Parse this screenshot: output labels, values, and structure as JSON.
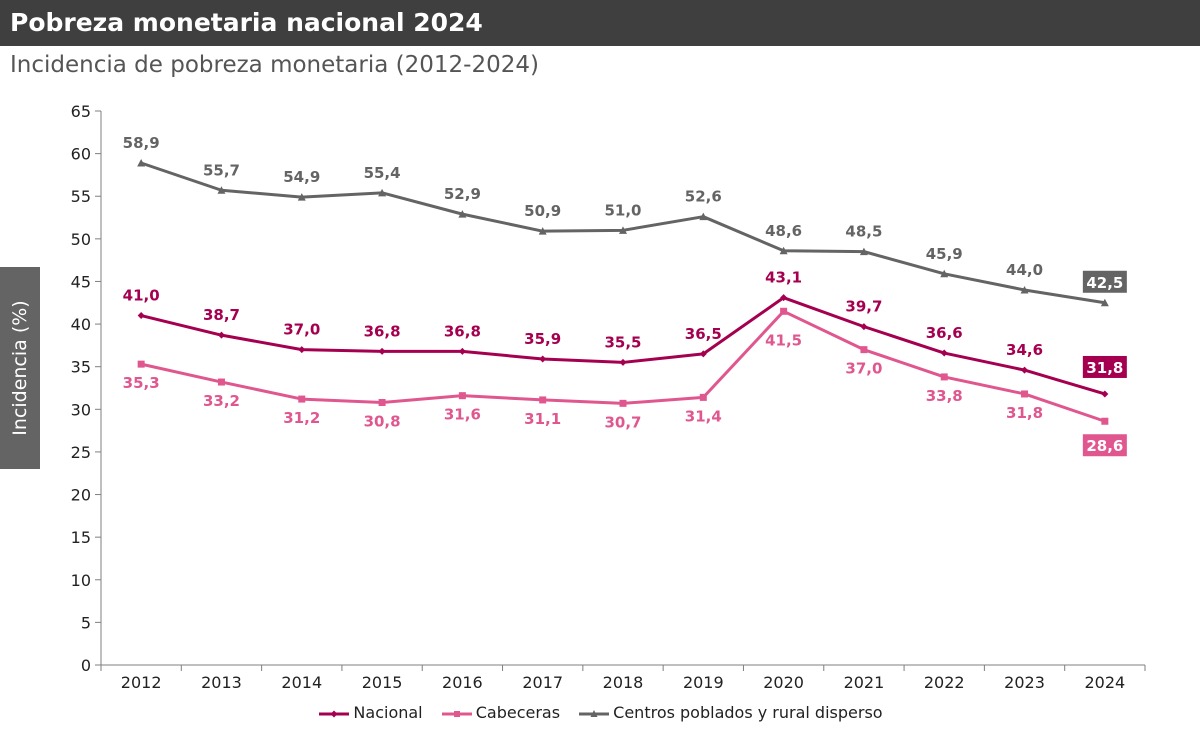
{
  "title": "Pobreza monetaria nacional 2024",
  "subtitle": "Incidencia de pobreza monetaria (2012-2024)",
  "colors": {
    "nacional": "#a50050",
    "cabeceras": "#e0578f",
    "centros": "#646464",
    "title_bg": "#3f3f3f"
  },
  "chart_data": {
    "type": "line",
    "title": "Pobreza monetaria nacional 2024",
    "subtitle": "Incidencia de pobreza monetaria (2012-2024)",
    "xlabel": "",
    "ylabel": "Incidencia (%)",
    "ylim": [
      0,
      65
    ],
    "ytick_step": 5,
    "grid": false,
    "legend_position": "bottom",
    "categories": [
      "2012",
      "2013",
      "2014",
      "2015",
      "2016",
      "2017",
      "2018",
      "2019",
      "2020",
      "2021",
      "2022",
      "2023",
      "2024"
    ],
    "series": [
      {
        "key": "nacional",
        "name": "Nacional",
        "marker": "diamond",
        "values": [
          41.0,
          38.7,
          37.0,
          36.8,
          36.8,
          35.9,
          35.5,
          36.5,
          43.1,
          39.7,
          36.6,
          34.6,
          31.8
        ],
        "labels": [
          "41,0",
          "38,7",
          "37,0",
          "36,8",
          "36,8",
          "35,9",
          "35,5",
          "36,5",
          "43,1",
          "39,7",
          "36,6",
          "34,6",
          "31,8"
        ]
      },
      {
        "key": "cabeceras",
        "name": "Cabeceras",
        "marker": "square",
        "values": [
          35.3,
          33.2,
          31.2,
          30.8,
          31.6,
          31.1,
          30.7,
          31.4,
          41.5,
          37.0,
          33.8,
          31.8,
          28.6
        ],
        "labels": [
          "35,3",
          "33,2",
          "31,2",
          "30,8",
          "31,6",
          "31,1",
          "30,7",
          "31,4",
          "41,5",
          "37,0",
          "33,8",
          "31,8",
          "28,6"
        ]
      },
      {
        "key": "centros",
        "name": "Centros poblados y rural disperso",
        "marker": "triangle",
        "values": [
          58.9,
          55.7,
          54.9,
          55.4,
          52.9,
          50.9,
          51.0,
          52.6,
          48.6,
          48.5,
          45.9,
          44.0,
          42.5
        ],
        "labels": [
          "58,9",
          "55,7",
          "54,9",
          "55,4",
          "52,9",
          "50,9",
          "51,0",
          "52,6",
          "48,6",
          "48,5",
          "45,9",
          "44,0",
          "42,5"
        ]
      }
    ]
  }
}
